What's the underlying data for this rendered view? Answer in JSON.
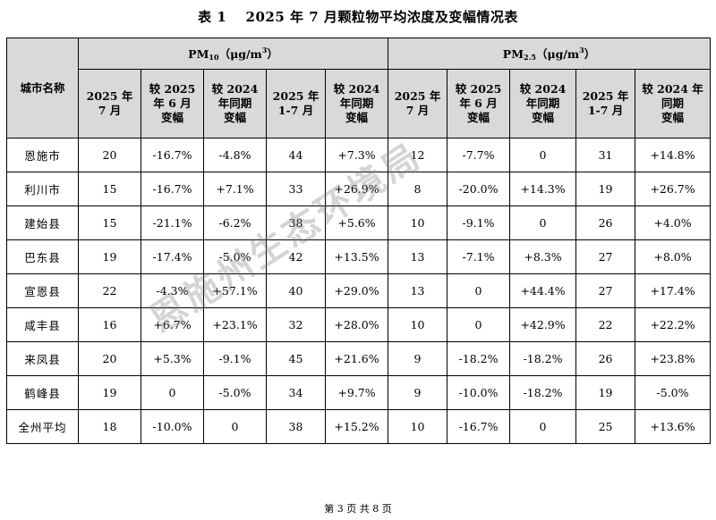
{
  "title": "表 1　  2025 年 7 月颗粒物平均浓度及变幅情况表",
  "table": {
    "city_header": "城市名称",
    "pm10_group": {
      "main": "PM",
      "sub": "10",
      "unit_prefix": "（μg/m",
      "sup": "3",
      "unit_suffix": "）"
    },
    "pm25_group": {
      "main": "PM",
      "sub": "2.5",
      "unit_prefix": "（μg/m",
      "sup": "3",
      "unit_suffix": "）"
    },
    "pm10_columns": [
      "2025 年\n7 月",
      "较 2025\n年 6 月\n变幅",
      "较 2024\n年同期\n变幅",
      "2025 年\n1-7 月",
      "较 2024\n年同期\n变幅"
    ],
    "pm25_columns": [
      "2025 年\n7 月",
      "较 2025\n年 6 月\n变幅",
      "较 2024\n年同期\n变幅",
      "2025 年\n1-7 月",
      "较 2024 年\n同期\n变幅"
    ],
    "rows": [
      {
        "city": "恩施市",
        "pm10": [
          "20",
          "-16.7%",
          "-4.8%",
          "44",
          "+7.3%"
        ],
        "pm25": [
          "12",
          "-7.7%",
          "0",
          "31",
          "+14.8%"
        ]
      },
      {
        "city": "利川市",
        "pm10": [
          "15",
          "-16.7%",
          "+7.1%",
          "33",
          "+26.9%"
        ],
        "pm25": [
          "8",
          "-20.0%",
          "+14.3%",
          "19",
          "+26.7%"
        ]
      },
      {
        "city": "建始县",
        "pm10": [
          "15",
          "-21.1%",
          "-6.2%",
          "38",
          "+5.6%"
        ],
        "pm25": [
          "10",
          "-9.1%",
          "0",
          "26",
          "+4.0%"
        ]
      },
      {
        "city": "巴东县",
        "pm10": [
          "19",
          "-17.4%",
          "-5.0%",
          "42",
          "+13.5%"
        ],
        "pm25": [
          "13",
          "-7.1%",
          "+8.3%",
          "27",
          "+8.0%"
        ]
      },
      {
        "city": "宣恩县",
        "pm10": [
          "22",
          "-4.3%",
          "+57.1%",
          "40",
          "+29.0%"
        ],
        "pm25": [
          "13",
          "0",
          "+44.4%",
          "27",
          "+17.4%"
        ]
      },
      {
        "city": "咸丰县",
        "pm10": [
          "16",
          "+6.7%",
          "+23.1%",
          "32",
          "+28.0%"
        ],
        "pm25": [
          "10",
          "0",
          "+42.9%",
          "22",
          "+22.2%"
        ]
      },
      {
        "city": "来凤县",
        "pm10": [
          "20",
          "+5.3%",
          "-9.1%",
          "45",
          "+21.6%"
        ],
        "pm25": [
          "9",
          "-18.2%",
          "-18.2%",
          "26",
          "+23.8%"
        ]
      },
      {
        "city": "鹤峰县",
        "pm10": [
          "19",
          "0",
          "-5.0%",
          "34",
          "+9.7%"
        ],
        "pm25": [
          "9",
          "-10.0%",
          "-18.2%",
          "19",
          "-5.0%"
        ]
      },
      {
        "city": "全州平均",
        "pm10": [
          "18",
          "-10.0%",
          "0",
          "38",
          "+15.2%"
        ],
        "pm25": [
          "10",
          "-16.7%",
          "0",
          "25",
          "+13.6%"
        ]
      }
    ]
  },
  "watermark": "恩施州生态环境局",
  "footer": "第 3 页 共 8 页"
}
